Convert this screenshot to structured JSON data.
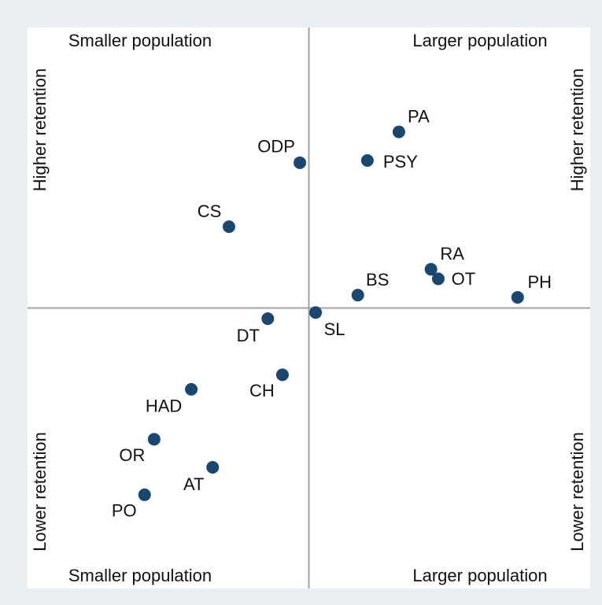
{
  "chart_data": {
    "type": "scatter",
    "labels": [
      "PA",
      "PSY",
      "ODP",
      "CS",
      "RA",
      "OT",
      "BS",
      "PH",
      "SL",
      "DT",
      "CH",
      "HAD",
      "OR",
      "AT",
      "PO"
    ],
    "x": [
      1.6,
      1.04,
      -0.16,
      -1.42,
      2.17,
      2.3,
      0.87,
      3.71,
      0.12,
      -0.73,
      -0.47,
      -2.09,
      -2.75,
      -1.71,
      -2.92
    ],
    "values": [
      3.14,
      2.63,
      2.59,
      1.45,
      0.69,
      0.52,
      0.23,
      0.19,
      -0.08,
      -0.19,
      -1.19,
      -1.45,
      -2.34,
      -2.84,
      -3.33
    ],
    "color": "#1a476f",
    "xlim": [
      -5,
      5
    ],
    "ylim": [
      -5,
      5
    ],
    "xline": 0,
    "yline": 0,
    "quadrant_labels": {
      "top_left": "Smaller population",
      "top_right": "Larger population",
      "bottom_left": "Smaller population",
      "bottom_right": "Larger population",
      "left_top": "Higher retention",
      "right_top": "Higher retention",
      "left_bottom": "Lower retention",
      "right_bottom": "Lower retention"
    }
  }
}
